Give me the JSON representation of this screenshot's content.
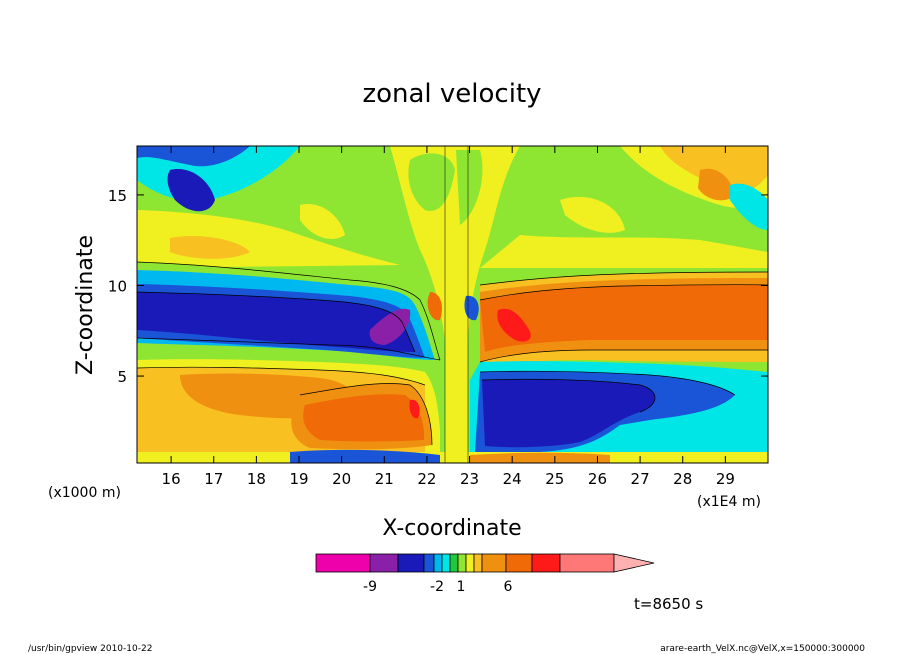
{
  "chart_data": {
    "type": "heatmap",
    "title": "zonal velocity",
    "xlabel": "X-coordinate",
    "ylabel": "Z-coordinate",
    "x_unit_left": "(x1000 m)",
    "x_unit_right": "(x1E4 m)",
    "x_ticks": [
      "16",
      "17",
      "18",
      "19",
      "20",
      "21",
      "22",
      "23",
      "24",
      "25",
      "26",
      "27",
      "28",
      "29"
    ],
    "y_ticks": [
      "5",
      "10",
      "15"
    ],
    "xlim": [
      15.2,
      30.0
    ],
    "ylim": [
      0.2,
      17.7
    ],
    "colorbar_labels": [
      "-9",
      "-2",
      "1",
      "6"
    ],
    "colorbar_colors": [
      "#ee00aa",
      "#8a20a8",
      "#1a1ab8",
      "#1a55d8",
      "#00b8f0",
      "#00e6e6",
      "#20c840",
      "#8ee632",
      "#f0f020",
      "#f8c020",
      "#f09010",
      "#f06a08",
      "#ff1a1a",
      "#ff7878"
    ],
    "colorbar_extend": "#ffb0b0",
    "time_label": "t=8650 s",
    "footer_left": "/usr/bin/gpview   2010-10-22",
    "footer_right": "arare-earth_VelX.nc@VelX,x=150000:300000"
  }
}
